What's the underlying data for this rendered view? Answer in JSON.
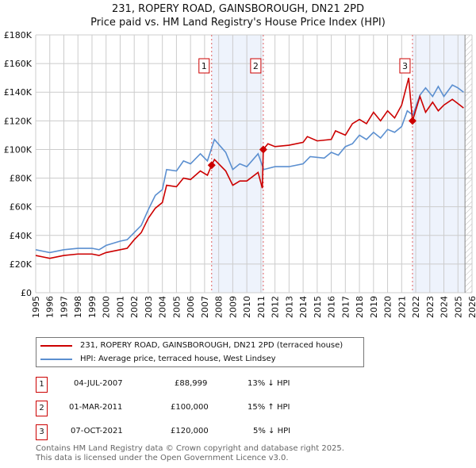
{
  "title": "231, ROPERY ROAD, GAINSBOROUGH, DN21 2PD",
  "subtitle": "Price paid vs. HM Land Registry's House Price Index (HPI)",
  "chart_data": {
    "type": "line",
    "title": "231, ROPERY ROAD, GAINSBOROUGH, DN21 2PD",
    "subtitle": "Price paid vs. HM Land Registry's House Price Index (HPI)",
    "xlim": [
      1995,
      2026
    ],
    "ylim": [
      0,
      180000
    ],
    "grid": true,
    "xticks": [
      "1995",
      "1996",
      "1997",
      "1998",
      "1999",
      "2000",
      "2001",
      "2002",
      "2003",
      "2004",
      "2005",
      "2006",
      "2007",
      "2008",
      "2009",
      "2010",
      "2011",
      "2012",
      "2013",
      "2014",
      "2015",
      "2016",
      "2017",
      "2018",
      "2019",
      "2020",
      "2021",
      "2022",
      "2023",
      "2024",
      "2025",
      "2026"
    ],
    "yticks": [
      {
        "v": 0,
        "l": "£0"
      },
      {
        "v": 20000,
        "l": "£20K"
      },
      {
        "v": 40000,
        "l": "£40K"
      },
      {
        "v": 60000,
        "l": "£60K"
      },
      {
        "v": 80000,
        "l": "£80K"
      },
      {
        "v": 100000,
        "l": "£100K"
      },
      {
        "v": 120000,
        "l": "£120K"
      },
      {
        "v": 140000,
        "l": "£140K"
      },
      {
        "v": 160000,
        "l": "£160K"
      },
      {
        "v": 180000,
        "l": "£180K"
      }
    ],
    "series": [
      {
        "name": "231, ROPERY ROAD, GAINSBOROUGH, DN21 2PD (terraced house)",
        "color": "#cc0000",
        "points": [
          [
            1995,
            26
          ],
          [
            1995.5,
            25
          ],
          [
            1996,
            24
          ],
          [
            1997,
            26
          ],
          [
            1998,
            27
          ],
          [
            1999,
            27
          ],
          [
            1999.5,
            26
          ],
          [
            2000,
            28
          ],
          [
            2001,
            30
          ],
          [
            2001.5,
            31
          ],
          [
            2002,
            37
          ],
          [
            2002.5,
            42
          ],
          [
            2003,
            52
          ],
          [
            2003.5,
            59
          ],
          [
            2004,
            63
          ],
          [
            2004.3,
            75
          ],
          [
            2005,
            74
          ],
          [
            2005.5,
            80
          ],
          [
            2006,
            79
          ],
          [
            2006.7,
            85
          ],
          [
            2007.2,
            82
          ],
          [
            2007.5,
            89
          ],
          [
            2007.7,
            93
          ],
          [
            2008.5,
            85
          ],
          [
            2009,
            75
          ],
          [
            2009.5,
            78
          ],
          [
            2010,
            78
          ],
          [
            2010.8,
            84
          ],
          [
            2011.1,
            73
          ],
          [
            2011.17,
            100
          ],
          [
            2011.5,
            104
          ],
          [
            2012,
            102
          ],
          [
            2013,
            103
          ],
          [
            2014,
            105
          ],
          [
            2014.3,
            109
          ],
          [
            2015,
            106
          ],
          [
            2016,
            107
          ],
          [
            2016.3,
            113
          ],
          [
            2017,
            110
          ],
          [
            2017.5,
            118
          ],
          [
            2018,
            121
          ],
          [
            2018.5,
            118
          ],
          [
            2019,
            126
          ],
          [
            2019.5,
            120
          ],
          [
            2020,
            127
          ],
          [
            2020.5,
            122
          ],
          [
            2021,
            131
          ],
          [
            2021.5,
            150
          ],
          [
            2021.77,
            120
          ],
          [
            2022.3,
            137
          ],
          [
            2022.7,
            126
          ],
          [
            2023.2,
            133
          ],
          [
            2023.6,
            127
          ],
          [
            2024,
            131
          ],
          [
            2024.6,
            135
          ],
          [
            2025,
            132
          ],
          [
            2025.4,
            129
          ]
        ]
      },
      {
        "name": "HPI: Average price, terraced house, West Lindsey",
        "color": "#5b8fd0",
        "points": [
          [
            1995,
            30
          ],
          [
            1995.5,
            29
          ],
          [
            1996,
            28
          ],
          [
            1997,
            30
          ],
          [
            1998,
            31
          ],
          [
            1999,
            31
          ],
          [
            1999.5,
            30
          ],
          [
            2000,
            33
          ],
          [
            2001,
            36
          ],
          [
            2001.5,
            37
          ],
          [
            2002,
            42
          ],
          [
            2002.5,
            47
          ],
          [
            2003,
            58
          ],
          [
            2003.5,
            68
          ],
          [
            2004,
            72
          ],
          [
            2004.3,
            86
          ],
          [
            2005,
            85
          ],
          [
            2005.5,
            92
          ],
          [
            2006,
            90
          ],
          [
            2006.7,
            97
          ],
          [
            2007.2,
            92
          ],
          [
            2007.7,
            107
          ],
          [
            2008.5,
            98
          ],
          [
            2009,
            86
          ],
          [
            2009.5,
            90
          ],
          [
            2010,
            88
          ],
          [
            2010.8,
            97
          ],
          [
            2011.2,
            86
          ],
          [
            2012,
            88
          ],
          [
            2013,
            88
          ],
          [
            2014,
            90
          ],
          [
            2014.5,
            95
          ],
          [
            2015.5,
            94
          ],
          [
            2016,
            98
          ],
          [
            2016.5,
            96
          ],
          [
            2017,
            102
          ],
          [
            2017.5,
            104
          ],
          [
            2018,
            110
          ],
          [
            2018.5,
            107
          ],
          [
            2019,
            112
          ],
          [
            2019.5,
            108
          ],
          [
            2020,
            114
          ],
          [
            2020.5,
            112
          ],
          [
            2021,
            116
          ],
          [
            2021.4,
            127
          ],
          [
            2021.8,
            124
          ],
          [
            2022.3,
            138
          ],
          [
            2022.7,
            143
          ],
          [
            2023.2,
            137
          ],
          [
            2023.6,
            144
          ],
          [
            2024,
            137
          ],
          [
            2024.6,
            145
          ],
          [
            2025,
            143
          ],
          [
            2025.4,
            140
          ]
        ]
      }
    ],
    "sales": [
      {
        "label": "1",
        "x": 2007.5,
        "y": 88999
      },
      {
        "label": "2",
        "x": 2011.17,
        "y": 100000
      },
      {
        "label": "3",
        "x": 2021.77,
        "y": 120000
      }
    ],
    "shaded": [
      [
        2007.5,
        2011.17
      ],
      [
        2021.77,
        2025.5
      ]
    ],
    "hatched_from": 2025.5
  },
  "legend": {
    "red": "231, ROPERY ROAD, GAINSBOROUGH, DN21 2PD (terraced house)",
    "blue": "HPI: Average price, terraced house, West Lindsey"
  },
  "sales": [
    {
      "num": "1",
      "date": "04-JUL-2007",
      "price": "£88,999",
      "hpi": "13% ↓ HPI"
    },
    {
      "num": "2",
      "date": "01-MAR-2011",
      "price": "£100,000",
      "hpi": "15% ↑ HPI"
    },
    {
      "num": "3",
      "date": "07-OCT-2021",
      "price": "£120,000",
      "hpi": "5% ↓ HPI"
    }
  ],
  "footer": {
    "line1": "Contains HM Land Registry data © Crown copyright and database right 2025.",
    "line2": "This data is licensed under the Open Government Licence v3.0."
  }
}
